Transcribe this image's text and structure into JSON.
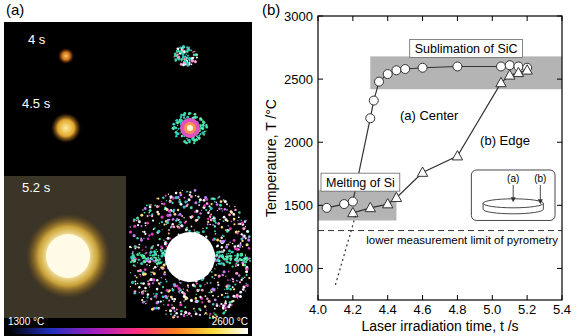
{
  "panel_a": {
    "label": "(a)",
    "frames": [
      {
        "label": "4 s"
      },
      {
        "label": "4.5 s"
      },
      {
        "label": "5.2 s"
      }
    ],
    "colorbar": {
      "range": [
        1300,
        2600
      ],
      "ticks": [
        {
          "value": 1300,
          "label": "1300 °C"
        },
        {
          "value": 2600,
          "label": "2600 °C"
        }
      ]
    }
  },
  "chart_data": {
    "type": "line",
    "panel_label": "(b)",
    "x_label": "Laser irradiation time, t /s",
    "y_label": "Temperature, T /°C",
    "xlim": [
      4.0,
      5.4
    ],
    "xticks": [
      {
        "value": 4.0,
        "label": "4.0"
      },
      4.2,
      4.4,
      4.6,
      4.8,
      {
        "value": 5.0,
        "label": "5.0"
      },
      5.2,
      5.4
    ],
    "ylim": [
      750,
      3000
    ],
    "yticks": [
      1000,
      1500,
      2000,
      2500,
      3000
    ],
    "grid": false,
    "series": [
      {
        "name": "(a) Center",
        "color": "#333333",
        "marker": "circle",
        "line_style": "solid",
        "x": [
          4.05,
          4.15,
          4.2,
          4.3,
          4.32,
          4.35,
          4.4,
          4.45,
          4.5,
          4.6,
          4.8,
          5.05,
          5.1,
          5.15,
          5.2
        ],
        "values": [
          1480,
          1510,
          1530,
          2190,
          2330,
          2480,
          2540,
          2570,
          2580,
          2590,
          2600,
          2600,
          2610,
          2600,
          2590
        ]
      },
      {
        "name": "(b) Edge",
        "color": "#333333",
        "marker": "triangle",
        "line_style": "solid",
        "x": [
          4.2,
          4.3,
          4.4,
          4.45,
          4.6,
          4.8,
          5.05,
          5.1,
          5.15,
          5.2
        ],
        "values": [
          1440,
          1480,
          1510,
          1560,
          1760,
          1890,
          2470,
          2530,
          2550,
          2570
        ]
      },
      {
        "color": "#333333",
        "marker": "none",
        "line_style": "dotted",
        "x": [
          4.1,
          4.22
        ],
        "values": [
          870,
          1440
        ]
      }
    ],
    "bands": [
      {
        "label": "Melting of Si",
        "color": "#b4b4b4",
        "x": [
          4.0,
          4.45
        ],
        "y": [
          1380,
          1620
        ]
      },
      {
        "label": "Sublimation of SiC",
        "color": "#b4b4b4",
        "x": [
          4.3,
          5.4
        ],
        "y": [
          2420,
          2680
        ]
      }
    ],
    "reference_line": {
      "value": 1300,
      "label": "lower measurement limit of pyrometry"
    },
    "inset_labels": [
      "(a)",
      "(b)"
    ]
  }
}
